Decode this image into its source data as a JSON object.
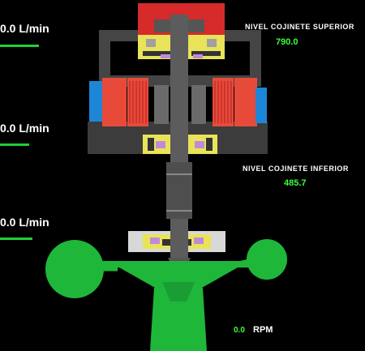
{
  "flow_meters": [
    {
      "value": "0.0",
      "unit": "L/min"
    },
    {
      "value": "0.0",
      "unit": "L/min"
    },
    {
      "value": "0.0",
      "unit": "L/min"
    }
  ],
  "upper_bearing": {
    "label": "NIVEL COJINETE SUPERIOR",
    "value": "790.0"
  },
  "lower_bearing": {
    "label": "NIVEL COJINETE INFERIOR",
    "value": "485.7"
  },
  "speed": {
    "value": "0.0",
    "unit": "RPM"
  },
  "colors": {
    "background": "#000000",
    "housing": "#3f3f3f",
    "bearing_head": "#d72a2a",
    "bearing_pad": "#e9e35a",
    "oil": "#c08ad8",
    "stator": "#e84a3a",
    "cooling": "#1e86d6",
    "shaft": "#5a5a5a",
    "turbine": "#1fb73a",
    "value_text": "#3cff3c"
  }
}
